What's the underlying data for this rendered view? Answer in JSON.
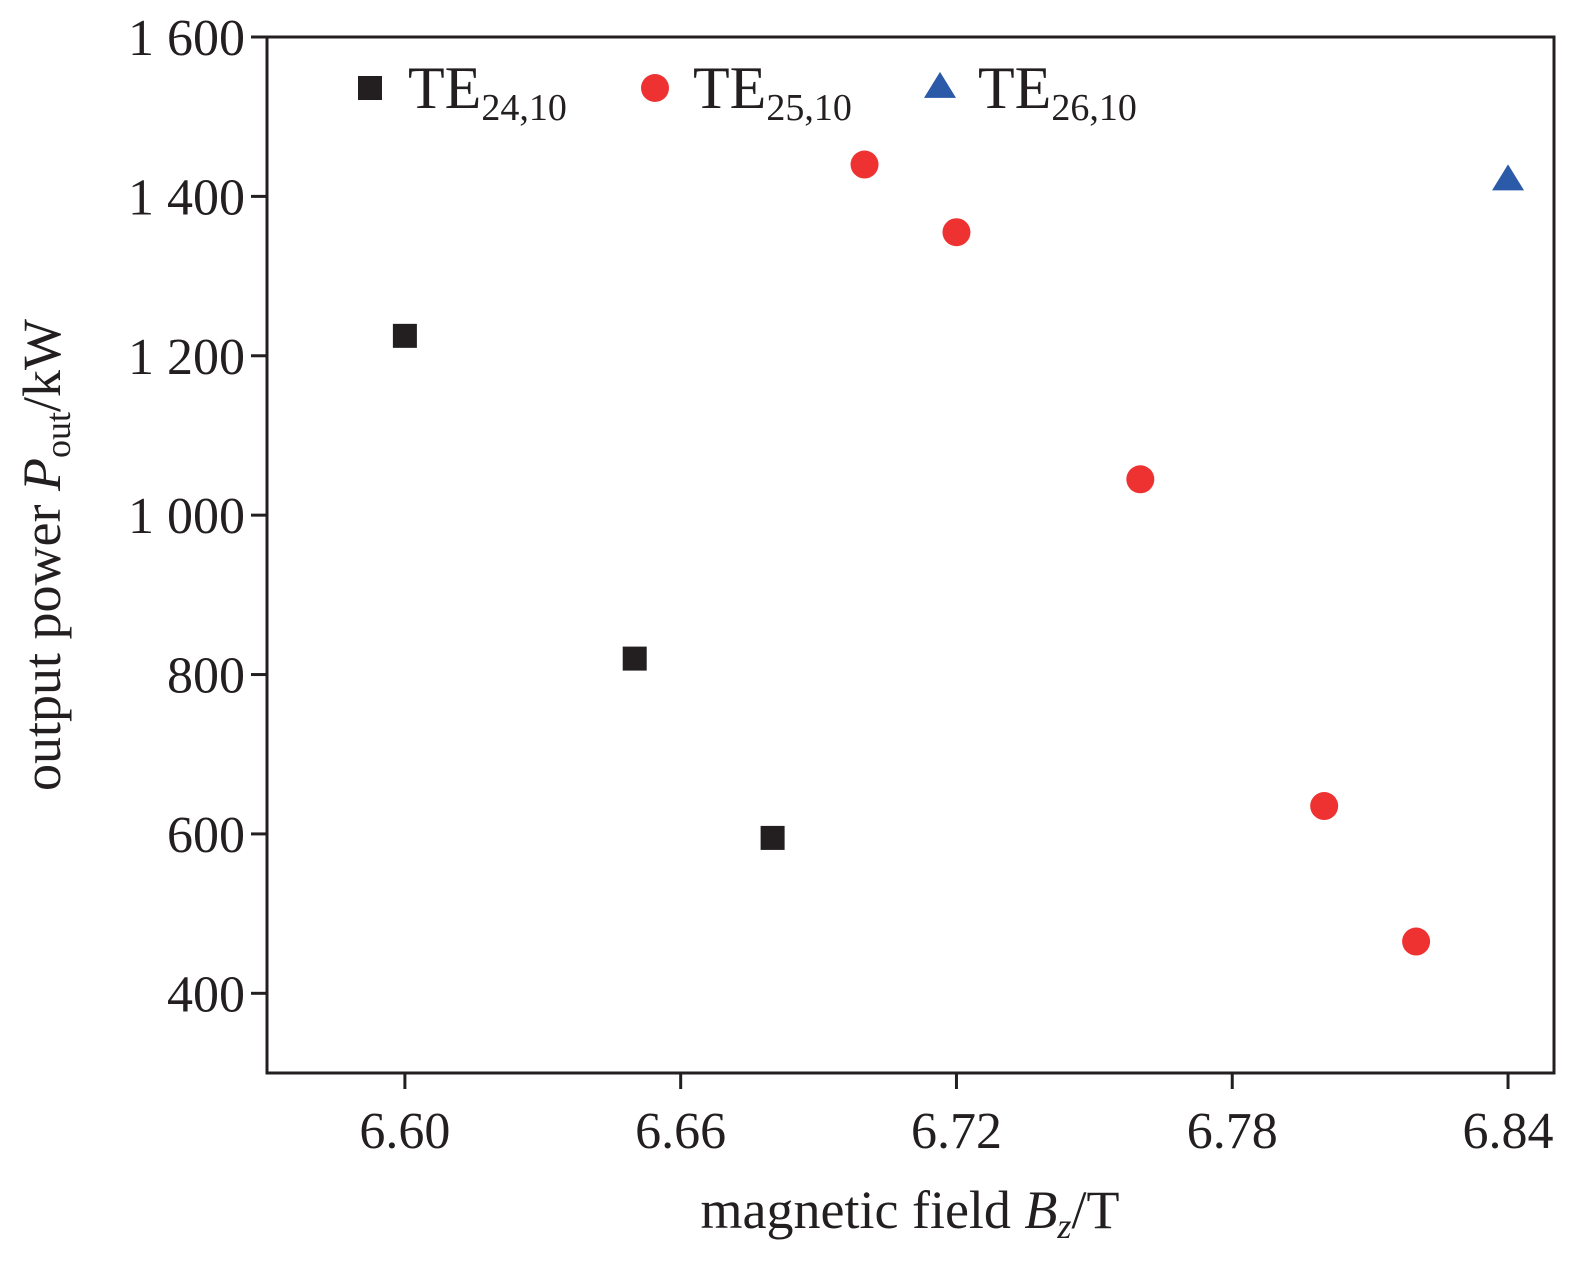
{
  "chart_data": {
    "type": "scatter",
    "title": "",
    "xlabel": {
      "prefix": "magnetic field ",
      "symbol": "B",
      "subscript": "z",
      "suffix": "/T"
    },
    "ylabel": {
      "prefix": "output power ",
      "symbol": "P",
      "subscript": "out",
      "suffix": "/kW"
    },
    "xlim": [
      6.57,
      6.85
    ],
    "ylim": [
      300,
      1600
    ],
    "xticks": [
      6.6,
      6.66,
      6.72,
      6.78,
      6.84
    ],
    "xtick_labels": [
      "6.60",
      "6.66",
      "6.72",
      "6.78",
      "6.84"
    ],
    "yticks": [
      400,
      600,
      800,
      1000,
      1200,
      1400,
      1600
    ],
    "ytick_labels": [
      "400",
      "600",
      "800",
      "1 000",
      "1 200",
      "1 400",
      "1 600"
    ],
    "grid": false,
    "legend_position": "top",
    "series": [
      {
        "name": "TE24,10",
        "label_main": "TE",
        "label_sub": "24,10",
        "marker": "square",
        "color": "#231f20",
        "points": [
          {
            "x": 6.6,
            "y": 1225
          },
          {
            "x": 6.65,
            "y": 820
          },
          {
            "x": 6.68,
            "y": 595
          }
        ]
      },
      {
        "name": "TE25,10",
        "label_main": "TE",
        "label_sub": "25,10",
        "marker": "circle",
        "color": "#ee3231",
        "points": [
          {
            "x": 6.7,
            "y": 1440
          },
          {
            "x": 6.72,
            "y": 1355
          },
          {
            "x": 6.76,
            "y": 1045
          },
          {
            "x": 6.8,
            "y": 635
          },
          {
            "x": 6.82,
            "y": 465
          }
        ]
      },
      {
        "name": "TE26,10",
        "label_main": "TE",
        "label_sub": "26,10",
        "marker": "triangle",
        "color": "#2a5aa8",
        "points": [
          {
            "x": 6.84,
            "y": 1420
          }
        ]
      }
    ]
  }
}
